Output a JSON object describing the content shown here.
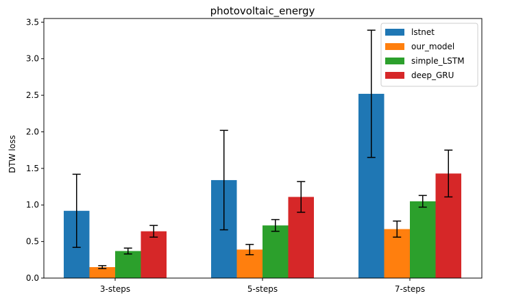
{
  "chart_data": {
    "type": "bar",
    "title": "photovoltaic_energy",
    "xlabel": "",
    "ylabel": "DTW loss",
    "ylim": [
      0,
      3.55
    ],
    "yticks": [
      "0.0",
      "0.5",
      "1.0",
      "1.5",
      "2.0",
      "2.5",
      "3.0",
      "3.5"
    ],
    "categories": [
      "3-steps",
      "5-steps",
      "7-steps"
    ],
    "legend_position": "top-right",
    "series": [
      {
        "name": "lstnet",
        "color": "#1f77b4",
        "values": [
          0.92,
          1.34,
          2.52
        ],
        "errors": [
          0.5,
          0.68,
          0.87
        ]
      },
      {
        "name": "our_model",
        "color": "#ff7f0e",
        "values": [
          0.15,
          0.39,
          0.67
        ],
        "errors": [
          0.02,
          0.07,
          0.11
        ]
      },
      {
        "name": "simple_LSTM",
        "color": "#2ca02c",
        "values": [
          0.37,
          0.72,
          1.05
        ],
        "errors": [
          0.04,
          0.08,
          0.08
        ]
      },
      {
        "name": "deep_GRU",
        "color": "#d62728",
        "values": [
          0.64,
          1.11,
          1.43
        ],
        "errors": [
          0.08,
          0.21,
          0.32
        ]
      }
    ]
  }
}
